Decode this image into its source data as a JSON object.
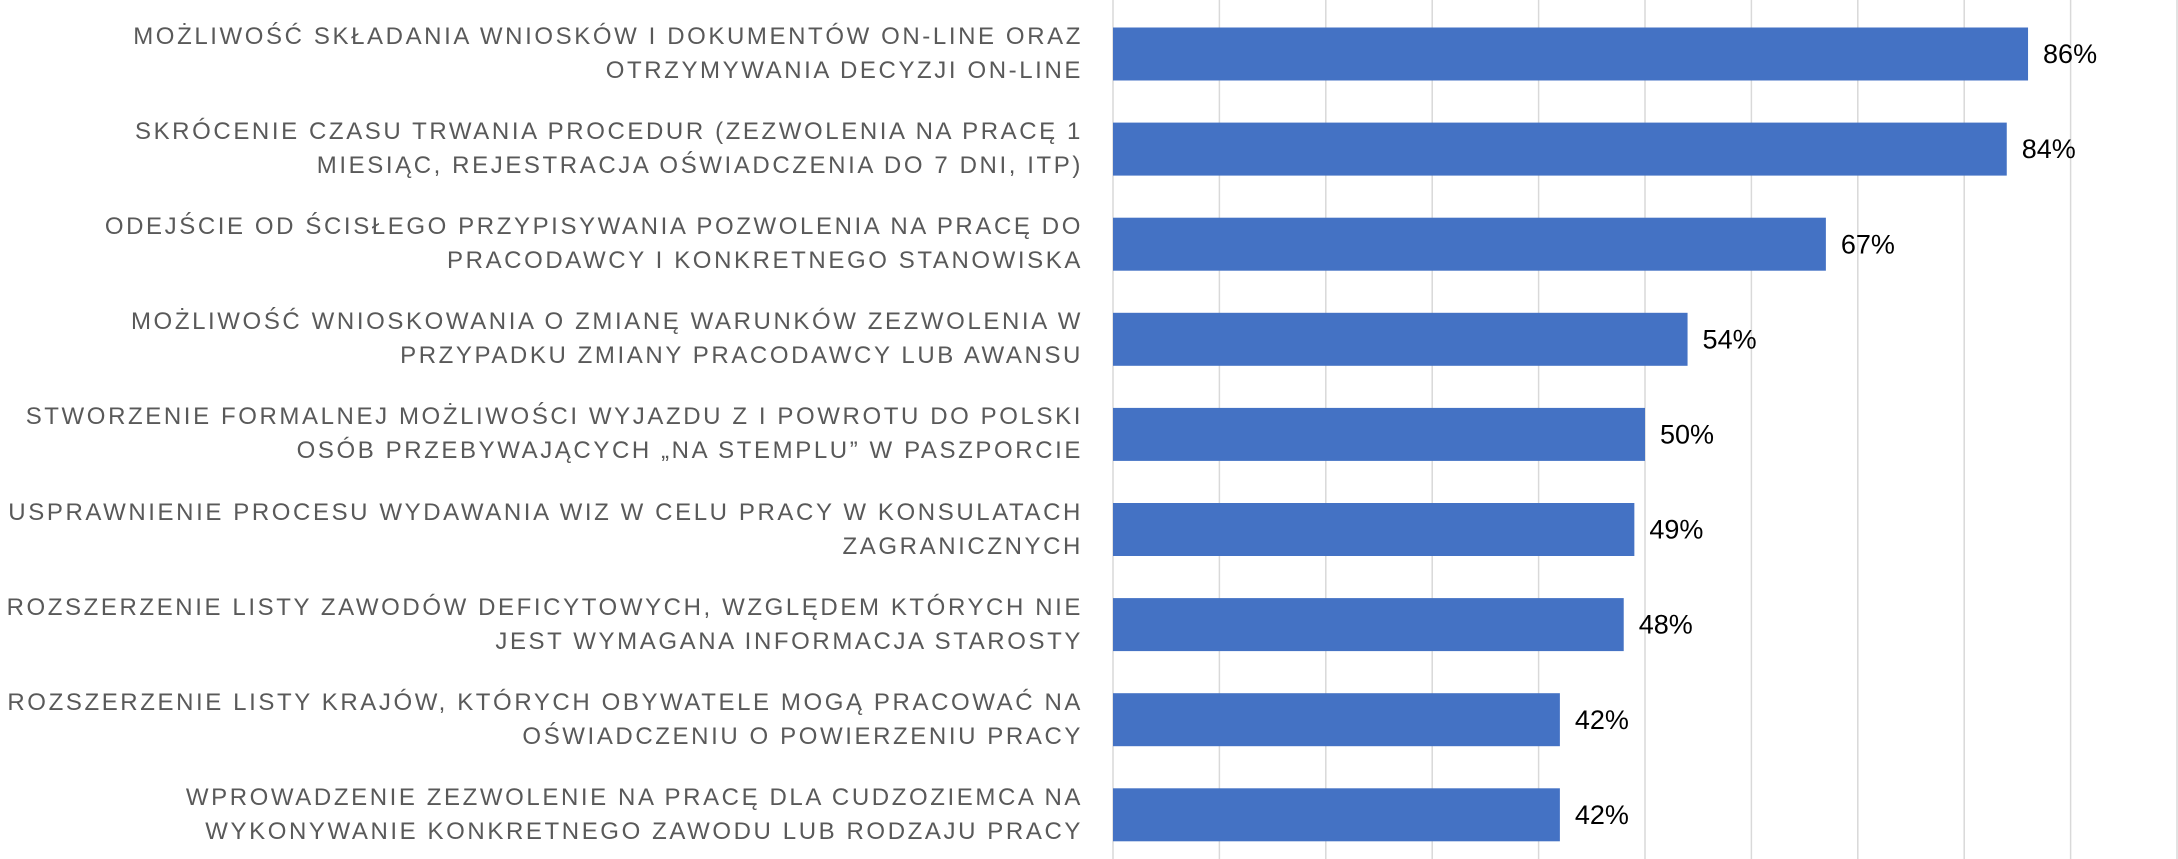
{
  "chart_data": {
    "type": "barh",
    "categories": [
      "MOŻLIWOŚĆ SKŁADANIA WNIOSKÓW I DOKUMENTÓW ON-LINE ORAZ OTRZYMYWANIA DECYZJI ON-LINE",
      "SKRÓCENIE CZASU TRWANIA PROCEDUR (ZEZWOLENIA NA PRACĘ 1 MIESIĄC, REJESTRACJA OŚWIADCZENIA DO 7 DNI, ITP)",
      "ODEJŚCIE OD ŚCISŁEGO PRZYPISYWANIA POZWOLENIA NA PRACĘ DO PRACODAWCY I KONKRETNEGO STANOWISKA",
      "MOŻLIWOŚĆ WNIOSKOWANIA O ZMIANĘ WARUNKÓW ZEZWOLENIA W PRZYPADKU ZMIANY PRACODAWCY LUB AWANSU",
      "STWORZENIE FORMALNEJ MOŻLIWOŚCI WYJAZDU Z I POWROTU DO POLSKI OSÓB PRZEBYWAJĄCYCH „NA STEMPLU” W PASZPORCIE",
      "USPRAWNIENIE PROCESU WYDAWANIA WIZ W CELU PRACY W KONSULATACH ZAGRANICZNYCH",
      "ROZSZERZENIE LISTY ZAWODÓW DEFICYTOWYCH, WZGLĘDEM KTÓRYCH NIE JEST WYMAGANA INFORMACJA STAROSTY",
      "ROZSZERZENIE LISTY KRAJÓW, KTÓRYCH OBYWATELE MOGĄ PRACOWAĆ NA OŚWIADCZENIU O POWIERZENIU PRACY",
      "WPROWADZENIE ZEZWOLENIE NA PRACĘ DLA CUDZOZIEMCA NA WYKONYWANIE KONKRETNEGO ZAWODU LUB RODZAJU PRACY"
    ],
    "values": [
      86,
      84,
      67,
      54,
      50,
      49,
      48,
      42,
      42
    ],
    "value_labels": [
      "86%",
      "84%",
      "67%",
      "54%",
      "50%",
      "49%",
      "48%",
      "42%",
      "42%"
    ],
    "color": "#4472c4",
    "xlim": [
      0,
      100
    ],
    "xticks": [
      0,
      10,
      20,
      30,
      40,
      50,
      60,
      70,
      80,
      90,
      100
    ],
    "grid": true
  }
}
